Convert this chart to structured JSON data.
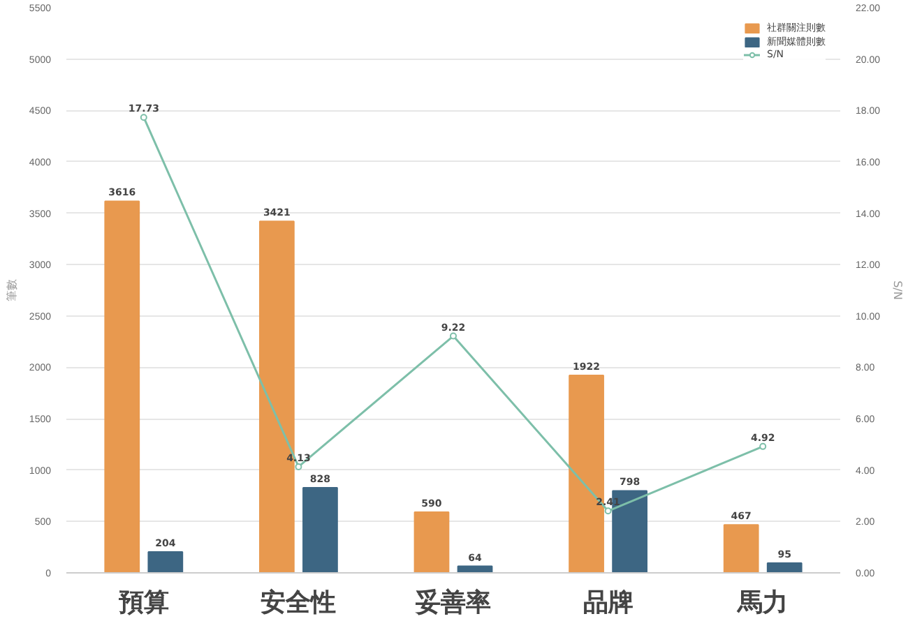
{
  "chart_data": {
    "type": "bar",
    "categories": [
      "預算",
      "安全性",
      "妥善率",
      "品牌",
      "馬力"
    ],
    "ylabel": "筆數",
    "y2label": "S/N",
    "series": [
      {
        "name": "社群關注則數",
        "color": "#e8994f",
        "values": [
          3616,
          3421,
          590,
          1922,
          467
        ]
      },
      {
        "name": "新聞媒體則數",
        "color": "#3d6683",
        "values": [
          204,
          828,
          64,
          798,
          95
        ]
      },
      {
        "name": "S/N",
        "type": "line",
        "axis": "y2",
        "color": "#7dbfa9",
        "marker": "circle",
        "values": [
          17.73,
          4.13,
          9.22,
          2.41,
          4.92
        ]
      }
    ],
    "ylim": [
      0,
      5500
    ],
    "yticks": [
      0,
      500,
      1000,
      1500,
      2000,
      2500,
      3000,
      3500,
      4000,
      4500,
      5000,
      5500
    ],
    "y2lim": [
      0,
      22
    ],
    "y2ticks": [
      {
        "value": 0,
        "label": "0.00"
      },
      {
        "value": 2,
        "label": "2.00"
      },
      {
        "value": 4,
        "label": "4.00"
      },
      {
        "value": 6,
        "label": "6.00"
      },
      {
        "value": 8,
        "label": "8.00"
      },
      {
        "value": 10,
        "label": "10.00"
      },
      {
        "value": 12,
        "label": "12.00"
      },
      {
        "value": 14,
        "label": "14.00"
      },
      {
        "value": 16,
        "label": "16.00"
      },
      {
        "value": 18,
        "label": "18.00"
      },
      {
        "value": 20,
        "label": "20.00"
      },
      {
        "value": 22,
        "label": "22.00"
      }
    ],
    "grid": "y",
    "legend": "top right",
    "data_labels": true
  }
}
